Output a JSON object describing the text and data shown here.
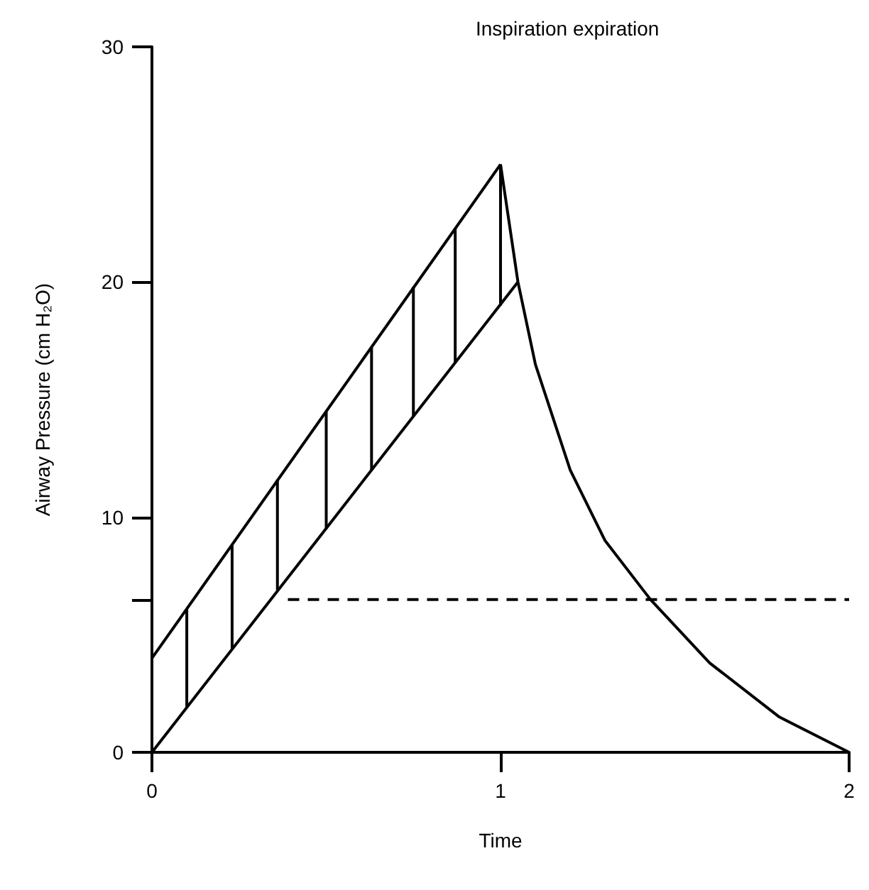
{
  "chart_data": {
    "type": "line",
    "title": "Inspiration expiration",
    "xlabel": "Time",
    "ylabel": "Airway Pressure (cm H₂O)",
    "xlim": [
      0,
      2
    ],
    "xticks": [
      0,
      1,
      2
    ],
    "ylim": [
      0,
      30
    ],
    "yticks": [
      0,
      {
        "value": 6.5,
        "label": null
      },
      10,
      20,
      30
    ],
    "grid": false,
    "marker": "none",
    "series": [
      {
        "color": "#000000",
        "x": [
          0,
          1
        ],
        "values": [
          4,
          25
        ]
      },
      {
        "color": "#000000",
        "x": [
          0,
          1.05
        ],
        "values": [
          0,
          20
        ]
      },
      {
        "color": "#000000",
        "x": [
          1,
          1.05,
          1.1,
          1.2,
          1.3,
          1.43,
          1.6,
          1.8,
          2
        ],
        "values": [
          25,
          20,
          16.5,
          12,
          9,
          6.5,
          3.8,
          1.5,
          0
        ]
      },
      {
        "color": "#000000",
        "x": [
          0.39,
          2
        ],
        "values": [
          6.5,
          6.5
        ],
        "line_style": "dashed"
      },
      {
        "color": "#000000",
        "x": [
          0.1,
          0.1
        ],
        "values": [
          1.9,
          6.1
        ]
      },
      {
        "color": "#000000",
        "x": [
          0.23,
          0.23
        ],
        "values": [
          4.4,
          8.8
        ]
      },
      {
        "color": "#000000",
        "x": [
          0.36,
          0.36
        ],
        "values": [
          6.9,
          11.6
        ]
      },
      {
        "color": "#000000",
        "x": [
          0.5,
          0.5
        ],
        "values": [
          9.5,
          14.5
        ]
      },
      {
        "color": "#000000",
        "x": [
          0.63,
          0.63
        ],
        "values": [
          12,
          17.2
        ]
      },
      {
        "color": "#000000",
        "x": [
          0.75,
          0.75
        ],
        "values": [
          14.3,
          19.8
        ]
      },
      {
        "color": "#000000",
        "x": [
          0.87,
          0.87
        ],
        "values": [
          16.6,
          22.3
        ]
      },
      {
        "color": "#000000",
        "x": [
          1,
          1
        ],
        "values": [
          19,
          25
        ]
      }
    ]
  }
}
